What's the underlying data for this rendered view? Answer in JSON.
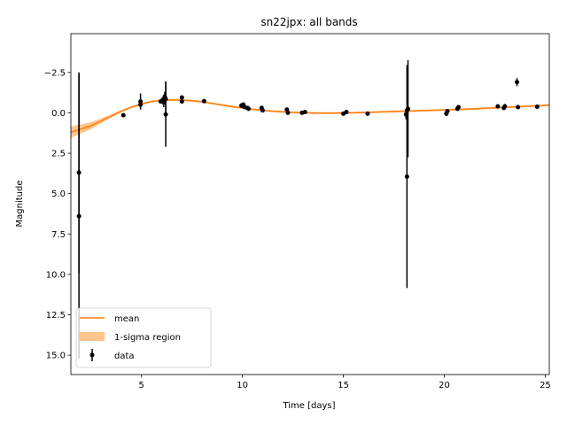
{
  "chart_data": {
    "type": "line",
    "title": "sn22jpx: all bands",
    "xlabel": "Time [days]",
    "ylabel": "Magnitude",
    "xlim": [
      1.5,
      25.2
    ],
    "ylim": [
      16.2,
      -4.9
    ],
    "y_inverted": true,
    "grid": false,
    "legend_position": "lower-left",
    "x_ticks": [
      5,
      10,
      15,
      20,
      25
    ],
    "x_tick_labels": [
      "5",
      "10",
      "15",
      "20",
      "25"
    ],
    "y_ticks": [
      -2.5,
      0.0,
      2.5,
      5.0,
      7.5,
      10.0,
      12.5,
      15.0
    ],
    "y_tick_labels": [
      "−2.5",
      "0.0",
      "2.5",
      "5.0",
      "7.5",
      "10.0",
      "12.5",
      "15.0"
    ],
    "colors": {
      "mean": "#ff7f0e",
      "band": "#ffbb78",
      "data": "#000000"
    },
    "legend": [
      {
        "key": "mean",
        "label": "mean"
      },
      {
        "key": "band",
        "label": "1-sigma region"
      },
      {
        "key": "data",
        "label": "data"
      }
    ],
    "mean": {
      "x": [
        1.5,
        2.0,
        2.5,
        3.0,
        3.5,
        4.0,
        4.5,
        5.0,
        5.5,
        6.0,
        6.5,
        7.0,
        7.5,
        8.0,
        8.5,
        9.0,
        9.5,
        10.0,
        10.5,
        11.0,
        11.5,
        12.0,
        12.5,
        13.0,
        13.5,
        14.0,
        14.5,
        15.0,
        15.5,
        16.0,
        16.5,
        17.0,
        17.5,
        18.0,
        18.5,
        19.0,
        19.5,
        20.0,
        20.5,
        21.0,
        21.5,
        22.0,
        22.5,
        23.0,
        23.5,
        24.0,
        24.5,
        25.0,
        25.2
      ],
      "y": [
        1.2,
        1.0,
        0.8,
        0.5,
        0.2,
        -0.1,
        -0.35,
        -0.55,
        -0.7,
        -0.78,
        -0.8,
        -0.78,
        -0.75,
        -0.68,
        -0.58,
        -0.48,
        -0.38,
        -0.3,
        -0.22,
        -0.15,
        -0.1,
        -0.06,
        -0.03,
        0.0,
        0.01,
        0.02,
        0.02,
        0.01,
        0.0,
        -0.02,
        -0.04,
        -0.06,
        -0.08,
        -0.1,
        -0.12,
        -0.14,
        -0.16,
        -0.18,
        -0.2,
        -0.22,
        -0.25,
        -0.28,
        -0.31,
        -0.34,
        -0.37,
        -0.4,
        -0.43,
        -0.46,
        -0.48
      ],
      "sigma": [
        0.35,
        0.28,
        0.22,
        0.15,
        0.1,
        0.07,
        0.06,
        0.06,
        0.06,
        0.06,
        0.06,
        0.06,
        0.06,
        0.06,
        0.06,
        0.06,
        0.06,
        0.06,
        0.06,
        0.06,
        0.06,
        0.06,
        0.06,
        0.06,
        0.06,
        0.06,
        0.06,
        0.06,
        0.06,
        0.06,
        0.06,
        0.06,
        0.06,
        0.06,
        0.06,
        0.06,
        0.06,
        0.06,
        0.06,
        0.06,
        0.06,
        0.06,
        0.06,
        0.06,
        0.06,
        0.06,
        0.06,
        0.06,
        0.06
      ]
    },
    "points": [
      {
        "x": 1.9,
        "y": 3.7,
        "err": 6.2
      },
      {
        "x": 1.9,
        "y": 6.4,
        "err": 8.8
      },
      {
        "x": 4.1,
        "y": 0.15,
        "err": 0.1
      },
      {
        "x": 4.95,
        "y": -0.7,
        "err": 0.5
      },
      {
        "x": 4.95,
        "y": -0.5,
        "err": 0.2
      },
      {
        "x": 5.95,
        "y": -0.7,
        "err": 0.1
      },
      {
        "x": 6.05,
        "y": -0.8,
        "err": 0.15
      },
      {
        "x": 6.1,
        "y": -0.65,
        "err": 0.3
      },
      {
        "x": 6.15,
        "y": -1.0,
        "err": 0.3
      },
      {
        "x": 6.2,
        "y": -0.85,
        "err": 1.1
      },
      {
        "x": 6.2,
        "y": 0.1,
        "err": 2.0
      },
      {
        "x": 7.0,
        "y": -0.95,
        "err": 0.1
      },
      {
        "x": 7.0,
        "y": -0.7,
        "err": 0.1
      },
      {
        "x": 8.1,
        "y": -0.72,
        "err": 0.08
      },
      {
        "x": 9.95,
        "y": -0.45,
        "err": 0.15
      },
      {
        "x": 10.05,
        "y": -0.5,
        "err": 0.15
      },
      {
        "x": 10.1,
        "y": -0.35,
        "err": 0.1
      },
      {
        "x": 10.25,
        "y": -0.3,
        "err": 0.1
      },
      {
        "x": 10.3,
        "y": -0.25,
        "err": 0.1
      },
      {
        "x": 10.95,
        "y": -0.3,
        "err": 0.1
      },
      {
        "x": 11.0,
        "y": -0.15,
        "err": 0.1
      },
      {
        "x": 12.2,
        "y": -0.2,
        "err": 0.1
      },
      {
        "x": 12.25,
        "y": 0.0,
        "err": 0.1
      },
      {
        "x": 12.95,
        "y": 0.0,
        "err": 0.1
      },
      {
        "x": 13.1,
        "y": -0.05,
        "err": 0.1
      },
      {
        "x": 15.0,
        "y": 0.05,
        "err": 0.1
      },
      {
        "x": 15.15,
        "y": -0.05,
        "err": 0.1
      },
      {
        "x": 16.2,
        "y": 0.05,
        "err": 0.1
      },
      {
        "x": 18.1,
        "y": 0.1,
        "err": 0.3
      },
      {
        "x": 18.15,
        "y": -0.15,
        "err": 0.2
      },
      {
        "x": 18.15,
        "y": 3.95,
        "err": 6.9
      },
      {
        "x": 18.2,
        "y": -0.25,
        "err": 3.0
      },
      {
        "x": 20.1,
        "y": 0.05,
        "err": 0.15
      },
      {
        "x": 20.15,
        "y": -0.1,
        "err": 0.1
      },
      {
        "x": 20.65,
        "y": -0.25,
        "err": 0.1
      },
      {
        "x": 20.7,
        "y": -0.35,
        "err": 0.1
      },
      {
        "x": 22.65,
        "y": -0.4,
        "err": 0.1
      },
      {
        "x": 22.95,
        "y": -0.3,
        "err": 0.1
      },
      {
        "x": 23.0,
        "y": -0.4,
        "err": 0.15
      },
      {
        "x": 23.6,
        "y": -1.9,
        "err": 0.25
      },
      {
        "x": 23.65,
        "y": -0.35,
        "err": 0.1
      },
      {
        "x": 24.6,
        "y": -0.38,
        "err": 0.08
      }
    ]
  }
}
